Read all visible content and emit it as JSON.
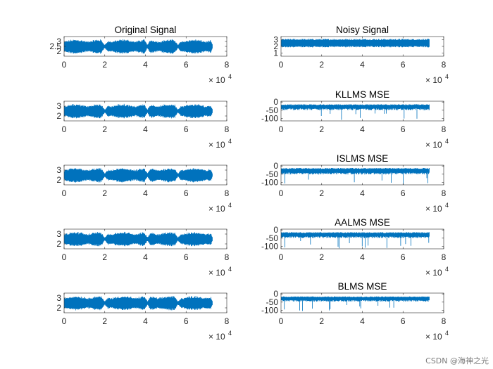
{
  "watermark": "CSDN @海神之光",
  "colors": {
    "line": "#0072BD",
    "axis": "#262626",
    "background": "#ffffff"
  },
  "chart_data": [
    {
      "type": "line",
      "title": "Original Signal",
      "x": {
        "range": [
          0,
          73000
        ],
        "lim": [
          0,
          80000
        ],
        "ticks": [
          "0",
          "2",
          "4",
          "6",
          "8"
        ],
        "exponent_base": "× 10",
        "exponent": "4"
      },
      "ylim": [
        1.5,
        3.5
      ],
      "yticks": [
        "3",
        "2.5",
        "2"
      ],
      "signal": {
        "kind": "speech",
        "mean": 2.5,
        "amplitude": 0.75
      }
    },
    {
      "type": "line",
      "title": "Noisy Signal",
      "x": {
        "range": [
          0,
          73000
        ],
        "lim": [
          0,
          80000
        ],
        "ticks": [
          "0",
          "2",
          "4",
          "6",
          "8"
        ],
        "exponent_base": "× 10",
        "exponent": "4"
      },
      "ylim": [
        0.5,
        3.5
      ],
      "yticks": [
        "3",
        "2",
        "1"
      ],
      "signal": {
        "kind": "noise",
        "mean": 2.5,
        "amplitude": 0.65
      }
    },
    {
      "type": "line",
      "title": "",
      "x": {
        "range": [
          0,
          73000
        ],
        "lim": [
          0,
          80000
        ],
        "ticks": [
          "0",
          "2",
          "4",
          "6",
          "8"
        ],
        "exponent_base": "× 10",
        "exponent": "4"
      },
      "ylim": [
        1.5,
        3.5
      ],
      "yticks": [
        "3",
        "2"
      ],
      "signal": {
        "kind": "speech",
        "mean": 2.5,
        "amplitude": 0.75
      }
    },
    {
      "type": "line",
      "title": "KLLMS MSE",
      "x": {
        "range": [
          0,
          73000
        ],
        "lim": [
          0,
          80000
        ],
        "ticks": [
          "0",
          "2",
          "4",
          "6",
          "8"
        ],
        "exponent_base": "× 10",
        "exponent": "4"
      },
      "ylim": [
        -115,
        5
      ],
      "yticks": [
        "0",
        "-50",
        "-100"
      ],
      "signal": {
        "kind": "mse",
        "mean": -28,
        "amplitude": 18
      }
    },
    {
      "type": "line",
      "title": "",
      "x": {
        "range": [
          0,
          73000
        ],
        "lim": [
          0,
          80000
        ],
        "ticks": [
          "0",
          "2",
          "4",
          "6",
          "8"
        ],
        "exponent_base": "× 10",
        "exponent": "4"
      },
      "ylim": [
        1.5,
        3.5
      ],
      "yticks": [
        "3",
        "2"
      ],
      "signal": {
        "kind": "speech",
        "mean": 2.5,
        "amplitude": 0.75
      }
    },
    {
      "type": "line",
      "title": "ISLMS MSE",
      "x": {
        "range": [
          0,
          73000
        ],
        "lim": [
          0,
          80000
        ],
        "ticks": [
          "0",
          "2",
          "4",
          "6",
          "8"
        ],
        "exponent_base": "× 10",
        "exponent": "4"
      },
      "ylim": [
        -115,
        5
      ],
      "yticks": [
        "0",
        "-50",
        "-100"
      ],
      "signal": {
        "kind": "mse",
        "mean": -28,
        "amplitude": 20
      }
    },
    {
      "type": "line",
      "title": "",
      "x": {
        "range": [
          0,
          73000
        ],
        "lim": [
          0,
          80000
        ],
        "ticks": [
          "0",
          "2",
          "4",
          "6",
          "8"
        ],
        "exponent_base": "× 10",
        "exponent": "4"
      },
      "ylim": [
        1.5,
        3.5
      ],
      "yticks": [
        "3",
        "2"
      ],
      "signal": {
        "kind": "speech",
        "mean": 2.5,
        "amplitude": 0.75
      }
    },
    {
      "type": "line",
      "title": "AALMS MSE",
      "x": {
        "range": [
          0,
          73000
        ],
        "lim": [
          0,
          80000
        ],
        "ticks": [
          "0",
          "2",
          "4",
          "6",
          "8"
        ],
        "exponent_base": "× 10",
        "exponent": "4"
      },
      "ylim": [
        -115,
        5
      ],
      "yticks": [
        "0",
        "-50",
        "-100"
      ],
      "signal": {
        "kind": "mse",
        "mean": -28,
        "amplitude": 18
      }
    },
    {
      "type": "line",
      "title": "",
      "x": {
        "range": [
          0,
          73000
        ],
        "lim": [
          0,
          80000
        ],
        "ticks": [
          "0",
          "2",
          "4",
          "6",
          "8"
        ],
        "exponent_base": "× 10",
        "exponent": "4"
      },
      "ylim": [
        1.5,
        3.5
      ],
      "yticks": [
        "3",
        "2"
      ],
      "signal": {
        "kind": "speech",
        "mean": 2.5,
        "amplitude": 0.75
      }
    },
    {
      "type": "line",
      "title": "BLMS MSE",
      "x": {
        "range": [
          0,
          73000
        ],
        "lim": [
          0,
          80000
        ],
        "ticks": [
          "0",
          "2",
          "4",
          "6",
          "8"
        ],
        "exponent_base": "× 10",
        "exponent": "4"
      },
      "ylim": [
        -115,
        5
      ],
      "yticks": [
        "0",
        "-50",
        "-100"
      ],
      "signal": {
        "kind": "mse",
        "mean": -28,
        "amplitude": 16
      }
    }
  ]
}
